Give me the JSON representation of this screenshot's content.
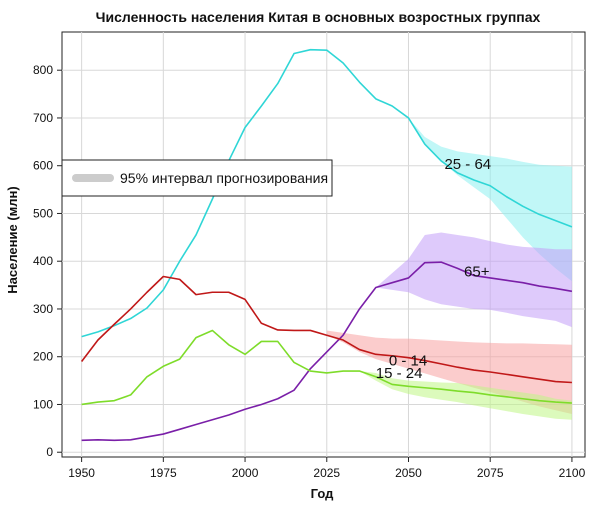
{
  "chart_data": {
    "type": "line",
    "title": "Численность населения Китая в основных возростных группах",
    "xlabel": "Год",
    "ylabel": "Население (млн)",
    "xlim": [
      1944,
      2104
    ],
    "ylim": [
      -10,
      880
    ],
    "xticks": [
      1950,
      1975,
      2000,
      2025,
      2050,
      2075,
      2100
    ],
    "yticks": [
      0,
      100,
      200,
      300,
      400,
      500,
      600,
      700,
      800
    ],
    "grid": true,
    "legend": {
      "position": "left",
      "label": "95% интервал прогнозирования",
      "swatch_color": "#cccccc"
    },
    "series": [
      {
        "name": "25 - 64",
        "color": "#2fd6d6",
        "band_color": "#8ef0f0",
        "x": [
          1950,
          1955,
          1960,
          1965,
          1970,
          1975,
          1980,
          1985,
          1990,
          1995,
          2000,
          2005,
          2010,
          2015,
          2020,
          2025,
          2030,
          2035,
          2040,
          2045,
          2050,
          2055,
          2060,
          2065,
          2070,
          2075,
          2080,
          2085,
          2090,
          2095,
          2100
        ],
        "values": [
          242,
          252,
          265,
          280,
          302,
          340,
          400,
          455,
          530,
          610,
          680,
          725,
          772,
          835,
          843,
          842,
          815,
          775,
          740,
          725,
          700,
          645,
          610,
          585,
          570,
          558,
          535,
          515,
          498,
          485,
          472
        ],
        "band_x": [
          2040,
          2045,
          2050,
          2055,
          2060,
          2065,
          2070,
          2075,
          2080,
          2085,
          2090,
          2095,
          2100
        ],
        "band_upper": [
          740,
          725,
          700,
          660,
          640,
          630,
          625,
          620,
          615,
          608,
          602,
          600,
          598
        ],
        "band_lower": [
          740,
          725,
          700,
          645,
          610,
          580,
          555,
          530,
          490,
          450,
          415,
          385,
          358
        ]
      },
      {
        "name": "65+",
        "color": "#7a1fa8",
        "band_color": "#c39ef7",
        "x": [
          1950,
          1955,
          1960,
          1965,
          1970,
          1975,
          1980,
          1985,
          1990,
          1995,
          2000,
          2005,
          2010,
          2015,
          2020,
          2025,
          2030,
          2035,
          2040,
          2045,
          2050,
          2055,
          2060,
          2065,
          2070,
          2075,
          2080,
          2085,
          2090,
          2095,
          2100
        ],
        "values": [
          25,
          26,
          25,
          26,
          32,
          38,
          48,
          58,
          68,
          78,
          90,
          100,
          112,
          130,
          175,
          210,
          245,
          300,
          345,
          355,
          365,
          397,
          398,
          385,
          370,
          365,
          360,
          355,
          348,
          343,
          337
        ],
        "band_x": [
          2040,
          2045,
          2050,
          2055,
          2060,
          2065,
          2070,
          2075,
          2080,
          2085,
          2090,
          2095,
          2100
        ],
        "band_upper": [
          345,
          375,
          405,
          455,
          460,
          455,
          450,
          442,
          435,
          430,
          428,
          425,
          425
        ],
        "band_lower": [
          345,
          340,
          335,
          320,
          310,
          305,
          300,
          298,
          292,
          285,
          280,
          275,
          262
        ]
      },
      {
        "name": "0 - 14",
        "color": "#c01818",
        "band_color": "#f7a3a3",
        "x": [
          1950,
          1955,
          1960,
          1965,
          1970,
          1975,
          1980,
          1985,
          1990,
          1995,
          2000,
          2005,
          2010,
          2015,
          2020,
          2025,
          2030,
          2035,
          2040,
          2045,
          2050,
          2055,
          2060,
          2065,
          2070,
          2075,
          2080,
          2085,
          2090,
          2095,
          2100
        ],
        "values": [
          190,
          235,
          268,
          300,
          335,
          368,
          362,
          330,
          335,
          335,
          320,
          270,
          256,
          255,
          255,
          245,
          235,
          215,
          205,
          202,
          198,
          192,
          185,
          178,
          172,
          168,
          163,
          158,
          153,
          148,
          146
        ],
        "band_x": [
          2025,
          2030,
          2035,
          2040,
          2045,
          2050,
          2055,
          2060,
          2065,
          2070,
          2075,
          2080,
          2085,
          2090,
          2095,
          2100
        ],
        "band_upper": [
          255,
          250,
          245,
          240,
          238,
          238,
          236,
          234,
          232,
          230,
          229,
          228,
          228,
          227,
          226,
          225
        ],
        "band_lower": [
          245,
          230,
          210,
          195,
          185,
          175,
          165,
          155,
          145,
          135,
          126,
          116,
          106,
          96,
          88,
          80
        ]
      },
      {
        "name": "15 - 24",
        "color": "#7edc2a",
        "band_color": "#bff585",
        "x": [
          1950,
          1955,
          1960,
          1965,
          1970,
          1975,
          1980,
          1985,
          1990,
          1995,
          2000,
          2005,
          2010,
          2015,
          2020,
          2025,
          2030,
          2035,
          2040,
          2045,
          2050,
          2055,
          2060,
          2065,
          2070,
          2075,
          2080,
          2085,
          2090,
          2095,
          2100
        ],
        "values": [
          100,
          105,
          108,
          120,
          158,
          180,
          195,
          240,
          255,
          225,
          205,
          232,
          232,
          188,
          170,
          166,
          170,
          170,
          158,
          142,
          138,
          135,
          132,
          128,
          125,
          120,
          116,
          112,
          108,
          105,
          103
        ],
        "band_x": [
          2035,
          2040,
          2045,
          2050,
          2055,
          2060,
          2065,
          2070,
          2075,
          2080,
          2085,
          2090,
          2095,
          2100
        ],
        "band_upper": [
          170,
          166,
          155,
          150,
          148,
          146,
          145,
          140,
          135,
          130,
          125,
          120,
          112,
          108
        ],
        "band_lower": [
          170,
          150,
          132,
          122,
          115,
          110,
          105,
          98,
          92,
          86,
          80,
          75,
          70,
          68
        ]
      }
    ],
    "annotations": [
      {
        "text": "25 - 64",
        "x": 2061,
        "y": 593
      },
      {
        "text": "65+",
        "x": 2067,
        "y": 368
      },
      {
        "text": "0 - 14",
        "x": 2044,
        "y": 182
      },
      {
        "text": "15 - 24",
        "x": 2040,
        "y": 155
      }
    ]
  }
}
